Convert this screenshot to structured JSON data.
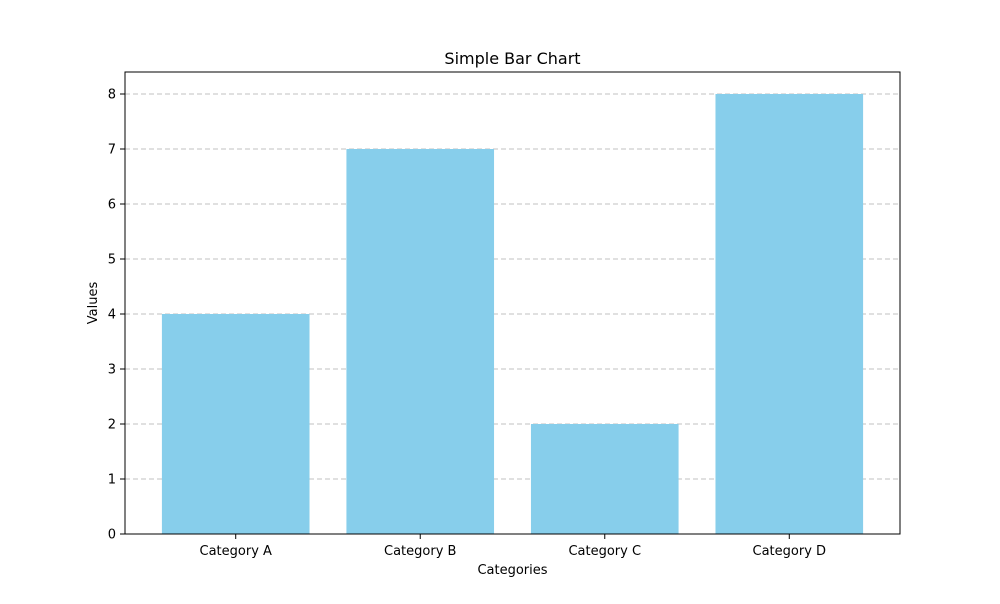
{
  "chart_data": {
    "type": "bar",
    "title": "Simple Bar Chart",
    "xlabel": "Categories",
    "ylabel": "Values",
    "categories": [
      "Category A",
      "Category B",
      "Category C",
      "Category D"
    ],
    "values": [
      4,
      7,
      2,
      8
    ],
    "ylim": [
      0,
      8.4
    ],
    "yticks": [
      "0",
      "1",
      "2",
      "3",
      "4",
      "5",
      "6",
      "7",
      "8"
    ],
    "grid": "y-dashed",
    "legend": "none",
    "bar_color": "#87CEEB",
    "grid_color": "#c0c0c0"
  }
}
